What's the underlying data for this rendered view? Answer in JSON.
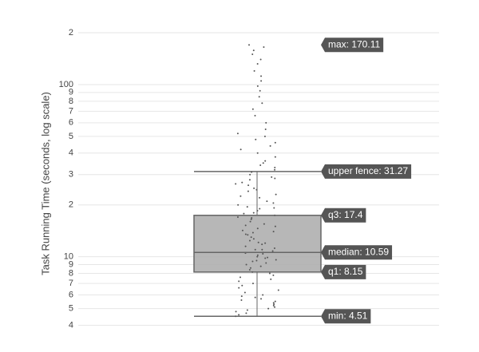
{
  "chart_data": {
    "type": "box",
    "y_label": "Task Running Time (seconds, log scale)",
    "log_y": true,
    "grid": true,
    "ylim": [
      3.5,
      225
    ],
    "yticks": [
      4,
      5,
      6,
      7,
      8,
      9,
      10,
      {
        "value": 20,
        "label": "2"
      },
      {
        "value": 30,
        "label": "3"
      },
      {
        "value": 40,
        "label": "4"
      },
      {
        "value": 50,
        "label": "5"
      },
      {
        "value": 60,
        "label": "6"
      },
      {
        "value": 70,
        "label": "7"
      },
      {
        "value": 80,
        "label": "8"
      },
      {
        "value": 90,
        "label": "9"
      },
      100,
      {
        "value": 200,
        "label": "2"
      }
    ],
    "box_color": "#aaaaaa",
    "line_color": "#666666",
    "point_color": "#555555",
    "box": {
      "min": 4.51,
      "q1": 8.15,
      "median": 10.59,
      "q3": 17.4,
      "upper_fence": 31.27,
      "max": 170.11
    },
    "value_labels": {
      "min": "min: 4.51",
      "q1": "q1: 8.15",
      "median": "median: 10.59",
      "q3": "q3: 17.4",
      "upper_fence": "upper fence: 31.27",
      "max": "max: 170.11"
    },
    "points": [
      170.11,
      165,
      158,
      150,
      140,
      132,
      120,
      112,
      105,
      98,
      92,
      85,
      78,
      72,
      66,
      60,
      55,
      52,
      50,
      48,
      46,
      44,
      42,
      40,
      38,
      36,
      35,
      34,
      33,
      32,
      31,
      30,
      29,
      28,
      27,
      26,
      25,
      24,
      23,
      22,
      21,
      20.5,
      20,
      19.5,
      19,
      18.5,
      18,
      17.8,
      17.4,
      17,
      16.5,
      16,
      15.5,
      15,
      14.6,
      14.2,
      13.8,
      13.4,
      13,
      12.7,
      12.4,
      12.1,
      11.8,
      11.5,
      11.2,
      11,
      10.8,
      10.59,
      10.4,
      10.2,
      10,
      9.8,
      9.6,
      9.4,
      9.2,
      9,
      8.8,
      8.6,
      8.4,
      8.15,
      8,
      7.8,
      7.6,
      7.4,
      7.2,
      7,
      6.8,
      6.6,
      6.4,
      6.2,
      6,
      5.9,
      5.8,
      5.7,
      5.6,
      5.5,
      5.4,
      5.3,
      5.2,
      5.1,
      5,
      4.9,
      4.8,
      4.7,
      4.6,
      4.51,
      11,
      10.5,
      9.9,
      9.5,
      12,
      13.5,
      14,
      15.2,
      16.8,
      19.2,
      22.5,
      24.5,
      26.5,
      28.5
    ]
  }
}
